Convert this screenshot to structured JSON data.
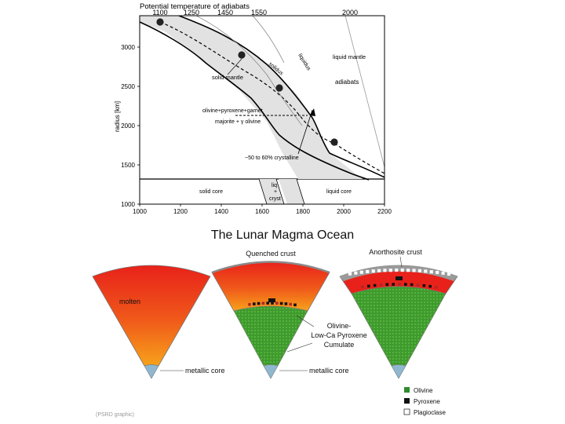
{
  "top_diagram": {
    "top_axis_title": "Potential temperature of adiabats",
    "top_ticks": [
      {
        "value": "1100",
        "temp": 1100
      },
      {
        "value": "1250",
        "temp": 1250
      },
      {
        "value": "1450",
        "temp": 1450
      },
      {
        "value": "1550",
        "temp": 1550
      },
      {
        "value": "2000",
        "temp": 2000
      }
    ],
    "y_axis_label": "radius [km]",
    "y_ticks": [
      {
        "label": "3000",
        "r": 3000
      },
      {
        "label": "2500",
        "r": 2500
      },
      {
        "label": "2000",
        "r": 2000
      },
      {
        "label": "1500",
        "r": 1500
      },
      {
        "label": "1000",
        "r": 1000
      }
    ],
    "x_ticks": [
      {
        "label": "1000",
        "t": 1000
      },
      {
        "label": "1200",
        "t": 1200
      },
      {
        "label": "1400",
        "t": 1400
      },
      {
        "label": "1600",
        "t": 1600
      },
      {
        "label": "1800",
        "t": 1800
      },
      {
        "label": "2000",
        "t": 2000
      },
      {
        "label": "2200",
        "t": 2200
      }
    ],
    "labels": {
      "liquid_mantle": "liquid mantle",
      "liquidus": "liquidus",
      "solidus": "solidus",
      "solid_mantle": "solid mantle",
      "adiabats": "adiabats",
      "olivine_pyroxene_garnet": "olivine+pyroxene+garnet",
      "majorite_olivine": "majorite + γ olivine",
      "crystalline": "~50 to 60% crystalline",
      "solid_core": "solid core",
      "liq": "liq",
      "plus": "+",
      "cryst": "cryst",
      "liquid_core": "liquid core"
    }
  },
  "bottom_diagram": {
    "title": "The Lunar Magma Ocean",
    "labels": {
      "molten": "molten",
      "metallic_core_1": "metallic core",
      "metallic_core_2": "metallic core",
      "quenched_crust": "Quenched crust",
      "anorthosite_crust": "Anorthosite crust",
      "cumulate_1": "Olivine-",
      "cumulate_2": "Low-Ca Pyroxene",
      "cumulate_3": "Cumulate"
    },
    "legend": [
      {
        "label": "Olivine",
        "color": "#2e8b2e"
      },
      {
        "label": "Pyroxene",
        "color": "#111111"
      },
      {
        "label": "Plagioclase",
        "color": "#ffffff"
      }
    ],
    "credit": "(PSRD graphic)"
  },
  "colors": {
    "molten_top": "#e8221a",
    "molten_bottom": "#f7a21b",
    "cumulate_green": "#3f9a2e",
    "core_blue": "#8fb8d0",
    "crust_gray": "#9a9a9a",
    "band_gray": "#e2e2e2"
  }
}
